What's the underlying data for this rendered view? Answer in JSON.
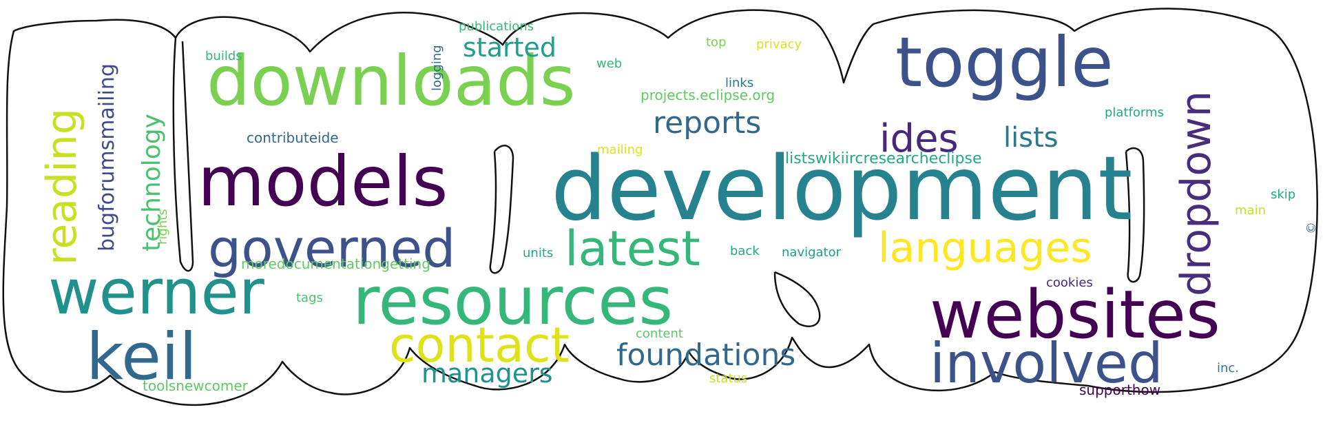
{
  "cloud": {
    "words": [
      {
        "text": "development",
        "color": "#26828e"
      },
      {
        "text": "downloads",
        "color": "#7ad151"
      },
      {
        "text": "toggle",
        "color": "#3b528b"
      },
      {
        "text": "models",
        "color": "#440154"
      },
      {
        "text": "websites",
        "color": "#440154"
      },
      {
        "text": "resources",
        "color": "#35b779"
      },
      {
        "text": "werner",
        "color": "#21918c"
      },
      {
        "text": "keil",
        "color": "#31688e"
      },
      {
        "text": "governed",
        "color": "#3b528b"
      },
      {
        "text": "latest",
        "color": "#35b779"
      },
      {
        "text": "contact",
        "color": "#dde318"
      },
      {
        "text": "involved",
        "color": "#3b528b"
      },
      {
        "text": "languages",
        "color": "#fde725"
      },
      {
        "text": "dropdown",
        "color": "#472d7b"
      },
      {
        "text": "reading",
        "color": "#c8e020"
      },
      {
        "text": "ides",
        "color": "#482878"
      },
      {
        "text": "foundations",
        "color": "#31688e"
      },
      {
        "text": "reports",
        "color": "#31688e"
      },
      {
        "text": "lists",
        "color": "#2a788e"
      },
      {
        "text": "managers",
        "color": "#21918c"
      },
      {
        "text": "started",
        "color": "#1f9e89"
      },
      {
        "text": "technology",
        "color": "#4ac16d"
      },
      {
        "text": "bugforumsmailing",
        "color": "#3e4a89"
      },
      {
        "text": "listswikiircresearcheclipse",
        "color": "#22a884"
      },
      {
        "text": "moredocumentationgetting",
        "color": "#5ec962"
      },
      {
        "text": "toolsnewcomer",
        "color": "#5ec962"
      },
      {
        "text": "contributeide",
        "color": "#31688e"
      },
      {
        "text": "supporthow",
        "color": "#440154"
      },
      {
        "text": "projects.eclipse.org",
        "color": "#5ec962"
      },
      {
        "text": "publications",
        "color": "#35b779"
      },
      {
        "text": "navigator",
        "color": "#1f9e89"
      },
      {
        "text": "platforms",
        "color": "#22a884"
      },
      {
        "text": "cookies",
        "color": "#482878"
      },
      {
        "text": "mailing",
        "color": "#dde318"
      },
      {
        "text": "privacy",
        "color": "#dde318"
      },
      {
        "text": "links",
        "color": "#2a788e"
      },
      {
        "text": "units",
        "color": "#22a884"
      },
      {
        "text": "back",
        "color": "#22a884"
      },
      {
        "text": "content",
        "color": "#5ec962"
      },
      {
        "text": "status",
        "color": "#c8e020"
      },
      {
        "text": "tags",
        "color": "#4ac16d"
      },
      {
        "text": "builds",
        "color": "#35b779"
      },
      {
        "text": "logging",
        "color": "#31688e"
      },
      {
        "text": "web",
        "color": "#35b779"
      },
      {
        "text": "top",
        "color": "#7ad151"
      },
      {
        "text": "skip",
        "color": "#22a884"
      },
      {
        "text": "main",
        "color": "#c8e020"
      },
      {
        "text": "inc.",
        "color": "#2a788e"
      },
      {
        "text": "rights",
        "color": "#7ad151"
      },
      {
        "text": "©",
        "color": "#31688e"
      }
    ]
  }
}
